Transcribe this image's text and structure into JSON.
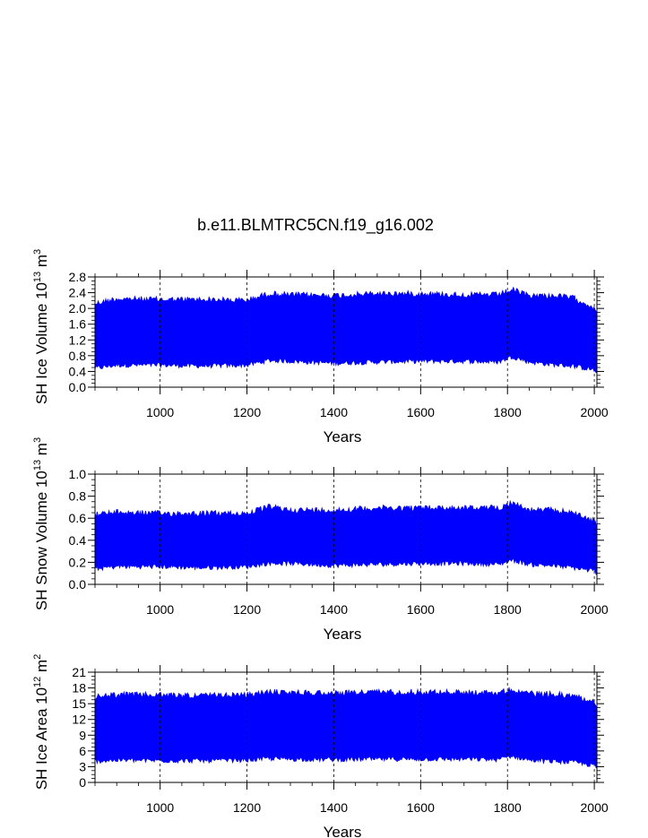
{
  "title": "b.e11.BLMTRC5CN.f19_g16.002",
  "series_color": "#0000ff",
  "chart_data": [
    {
      "type": "area",
      "description_of_marks": "high-frequency seasonal cycle band (min to max envelope) per year",
      "xlabel": "Years",
      "ylabel": "SH Ice Volume 10",
      "ylabel_exp": "13",
      "ylabel_unit": " m",
      "ylabel_unit_exp": "3",
      "xlim": [
        850,
        2006
      ],
      "ylim": [
        0.0,
        2.8
      ],
      "xticks": [
        1000,
        1200,
        1400,
        1600,
        1800,
        2000
      ],
      "yticks": [
        0.0,
        0.4,
        0.8,
        1.2,
        1.6,
        2.0,
        2.4,
        2.8
      ],
      "ytick_labels": [
        "0.0",
        "0.4",
        "0.8",
        "1.2",
        "1.6",
        "2.0",
        "2.4",
        "2.8"
      ],
      "grid_x": true,
      "envelope": {
        "x": [
          850,
          900,
          1000,
          1100,
          1200,
          1250,
          1300,
          1400,
          1500,
          1600,
          1700,
          1780,
          1810,
          1850,
          1900,
          1950,
          2000,
          2005
        ],
        "upper": [
          2.2,
          2.32,
          2.3,
          2.3,
          2.28,
          2.45,
          2.42,
          2.4,
          2.45,
          2.45,
          2.42,
          2.42,
          2.55,
          2.4,
          2.4,
          2.35,
          2.1,
          1.9
        ],
        "lower": [
          0.42,
          0.5,
          0.5,
          0.48,
          0.5,
          0.62,
          0.6,
          0.55,
          0.58,
          0.6,
          0.6,
          0.58,
          0.72,
          0.58,
          0.52,
          0.48,
          0.38,
          0.25
        ]
      }
    },
    {
      "type": "area",
      "xlabel": "Years",
      "ylabel": "SH Snow Volume 10",
      "ylabel_exp": "13",
      "ylabel_unit": " m",
      "ylabel_unit_exp": "3",
      "xlim": [
        850,
        2006
      ],
      "ylim": [
        0.0,
        1.0
      ],
      "xticks": [
        1000,
        1200,
        1400,
        1600,
        1800,
        2000
      ],
      "yticks": [
        0.0,
        0.2,
        0.4,
        0.6,
        0.8,
        1.0
      ],
      "ytick_labels": [
        "0.0",
        "0.2",
        "0.4",
        "0.6",
        "0.8",
        "1.0"
      ],
      "grid_x": true,
      "envelope": {
        "x": [
          850,
          900,
          1000,
          1100,
          1200,
          1250,
          1300,
          1400,
          1500,
          1600,
          1700,
          1780,
          1810,
          1850,
          1900,
          1950,
          2000,
          2005
        ],
        "upper": [
          0.66,
          0.68,
          0.67,
          0.67,
          0.67,
          0.73,
          0.7,
          0.7,
          0.72,
          0.72,
          0.72,
          0.72,
          0.77,
          0.7,
          0.7,
          0.68,
          0.6,
          0.55
        ],
        "lower": [
          0.12,
          0.14,
          0.14,
          0.13,
          0.14,
          0.17,
          0.17,
          0.15,
          0.16,
          0.17,
          0.17,
          0.16,
          0.2,
          0.16,
          0.15,
          0.13,
          0.1,
          0.06
        ]
      }
    },
    {
      "type": "area",
      "xlabel": "Years",
      "ylabel": "SH Ice Area 10",
      "ylabel_exp": "12",
      "ylabel_unit": " m",
      "ylabel_unit_exp": "2",
      "xlim": [
        850,
        2006
      ],
      "ylim": [
        0,
        21
      ],
      "xticks": [
        1000,
        1200,
        1400,
        1600,
        1800,
        2000
      ],
      "yticks": [
        0,
        3,
        6,
        9,
        12,
        15,
        18,
        21
      ],
      "ytick_labels": [
        "0",
        "3",
        "6",
        "9",
        "12",
        "15",
        "18",
        "21"
      ],
      "grid_x": true,
      "envelope": {
        "x": [
          850,
          900,
          1000,
          1100,
          1200,
          1250,
          1300,
          1400,
          1500,
          1600,
          1700,
          1780,
          1810,
          1850,
          1900,
          1950,
          2000,
          2005
        ],
        "upper": [
          16.8,
          17.3,
          17.2,
          17.1,
          17.2,
          17.8,
          17.7,
          17.6,
          17.8,
          17.8,
          17.7,
          17.6,
          18.3,
          17.5,
          17.4,
          17.1,
          16.0,
          15.0
        ],
        "lower": [
          3.6,
          3.8,
          3.7,
          3.7,
          3.8,
          4.1,
          4.0,
          3.9,
          4.0,
          4.0,
          4.0,
          3.9,
          4.6,
          3.8,
          3.6,
          3.4,
          2.8,
          2.2
        ]
      }
    }
  ]
}
